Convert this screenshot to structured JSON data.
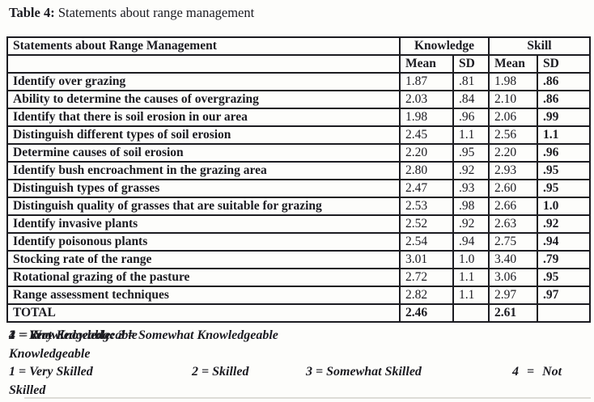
{
  "page": {
    "title_label": "Table 4:",
    "title_text": "Statements about range management"
  },
  "table": {
    "header": {
      "statements": "Statements about Range Management",
      "knowledge": "Knowledge",
      "skill": "Skill",
      "mean": "Mean",
      "sd": "SD"
    },
    "rows": [
      {
        "statement": "Identify over grazing",
        "k_mean": "1.87",
        "k_sd": ".81",
        "s_mean": "1.98",
        "s_sd": ".86"
      },
      {
        "statement": "Ability to determine the causes of overgrazing",
        "k_mean": "2.03",
        "k_sd": ".84",
        "s_mean": "2.10",
        "s_sd": ".86"
      },
      {
        "statement": "Identify that there is soil erosion in our area",
        "k_mean": "1.98",
        "k_sd": ".96",
        "s_mean": "2.06",
        "s_sd": ".99"
      },
      {
        "statement": "Distinguish different types of soil erosion",
        "k_mean": "2.45",
        "k_sd": "1.1",
        "s_mean": "2.56",
        "s_sd": "1.1"
      },
      {
        "statement": "Determine causes of soil erosion",
        "k_mean": "2.20",
        "k_sd": ".95",
        "s_mean": "2.20",
        "s_sd": ".96"
      },
      {
        "statement": "Identify bush encroachment in the grazing area",
        "k_mean": "2.80",
        "k_sd": ".92",
        "s_mean": "2.93",
        "s_sd": ".95"
      },
      {
        "statement": "Distinguish types of grasses",
        "k_mean": "2.47",
        "k_sd": ".93",
        "s_mean": "2.60",
        "s_sd": ".95"
      },
      {
        "statement": "Distinguish quality of grasses that are suitable for grazing",
        "k_mean": "2.53",
        "k_sd": ".98",
        "s_mean": "2.66",
        "s_sd": "1.0"
      },
      {
        "statement": "Identify invasive plants",
        "k_mean": "2.52",
        "k_sd": ".92",
        "s_mean": "2.63",
        "s_sd": ".92"
      },
      {
        "statement": "Identify poisonous plants",
        "k_mean": "2.54",
        "k_sd": ".94",
        "s_mean": "2.75",
        "s_sd": ".94"
      },
      {
        "statement": "Stocking rate of the range",
        "k_mean": "3.01",
        "k_sd": "1.0",
        "s_mean": "3.40",
        "s_sd": ".79"
      },
      {
        "statement": "Rotational grazing of the pasture",
        "k_mean": "2.72",
        "k_sd": "1.1",
        "s_mean": "3.06",
        "s_sd": ".95"
      },
      {
        "statement": "Range assessment techniques",
        "k_mean": "2.82",
        "k_sd": "1.1",
        "s_mean": "2.97",
        "s_sd": ".97"
      }
    ],
    "total": {
      "label": "TOTAL",
      "k_mean": "2.46",
      "s_mean": "2.61"
    }
  },
  "footnote": {
    "knowledge_seg1": "1 = Very Knowledgeable",
    "knowledge_seg2": "2 = Knowledgeable: 3 = Somewhat Knowledgeable",
    "knowledge_seg3": "4 = Not",
    "knowledge_wrap": "Knowledgeable",
    "skill_seg1": "1 = Very Skilled",
    "skill_seg2": "2 = Skilled",
    "skill_seg3": "3 = Somewhat Skilled",
    "skill_seg4": "4 = Not",
    "skill_wrap": "Skilled"
  }
}
